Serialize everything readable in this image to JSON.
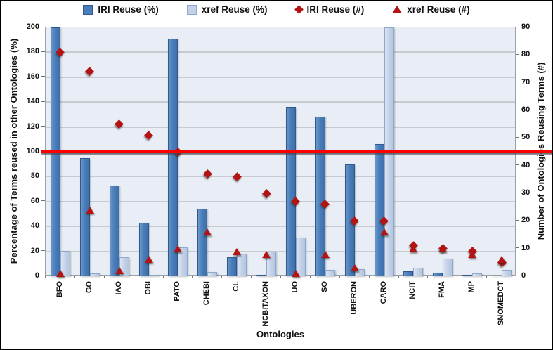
{
  "colors": {
    "bar_iri": "#4A7EBB",
    "bar_iri_border": "#31598C",
    "bar_iri_gradient_light": "#6C96C9",
    "bar_iri_gradient_dark": "#3D6FA9",
    "bar_xref": "#C5D3E9",
    "bar_xref_border": "#8FA7CB",
    "bar_xref_gradient_light": "#DCE4F2",
    "bar_xref_gradient_dark": "#B3C4E0",
    "marker_red": "#B31312",
    "arrow_red": "#FB0000",
    "plot_bg": "#E9EEF6",
    "gridline": "#C6CAD1",
    "axis_line": "#9CA1A8"
  },
  "chart_data": {
    "type": "combo-bar-scatter",
    "title": "",
    "xlabel": "Ontologies",
    "ylabel_left": "Percentage of Terms reused in other Ontologies (%)",
    "ylabel_right": "Number of Ontologies Reusing Terms (#)",
    "legend_position": "top",
    "grid": true,
    "left_axis": {
      "min": 0,
      "max": 200,
      "step": 20,
      "tick_labels": [
        "0",
        "20",
        "40",
        "60",
        "80",
        "100",
        "120",
        "140",
        "160",
        "180",
        "200"
      ]
    },
    "right_axis": {
      "min": 0,
      "max": 90,
      "step": 10,
      "tick_labels": [
        "0",
        "10",
        "20",
        "30",
        "40",
        "50",
        "60",
        "70",
        "80",
        "90"
      ]
    },
    "categories": [
      "BFO",
      "GO",
      "IAO",
      "OBI",
      "PATO",
      "CHEBI",
      "CL",
      "NCBITAXON",
      "UO",
      "SO",
      "UBERON",
      "CARO",
      "NCIT",
      "FMA",
      "MP",
      "SNOMEDCT"
    ],
    "series": [
      {
        "name": "IRI Reuse (%)",
        "type": "bar",
        "axis": "left",
        "marker": "square-dark-blue",
        "values": [
          200,
          95,
          73,
          43,
          191,
          54,
          15.5,
          1,
          136,
          128,
          90,
          106,
          4,
          3,
          1,
          0.5
        ]
      },
      {
        "name": "xref Reuse (%)",
        "type": "bar",
        "axis": "left",
        "marker": "square-light-blue",
        "values": [
          20.5,
          2,
          15,
          1,
          23,
          3.5,
          18,
          20,
          31,
          5,
          5.5,
          200,
          6.5,
          14,
          2,
          5
        ]
      },
      {
        "name": "IRI Reuse (#)",
        "type": "scatter",
        "axis": "right",
        "marker": "diamond",
        "values": [
          81,
          74,
          55,
          51,
          45,
          37,
          36,
          30,
          27,
          26,
          20,
          20,
          11,
          10,
          9,
          5
        ]
      },
      {
        "name": "xref Reuse (#)",
        "type": "scatter",
        "axis": "right",
        "marker": "triangle",
        "values": [
          1,
          24,
          2,
          6,
          10,
          16,
          9,
          8,
          1,
          8,
          3,
          16,
          10,
          10,
          8,
          6
        ]
      }
    ],
    "clipped_bars": [
      {
        "series": "IRI Reuse (%)",
        "category": "BFO"
      },
      {
        "series": "xref Reuse (%)",
        "category": "CARO"
      }
    ],
    "annotations": [
      {
        "type": "horizontal-arrow",
        "axis": "left",
        "value": 100,
        "direction": "right"
      }
    ]
  }
}
